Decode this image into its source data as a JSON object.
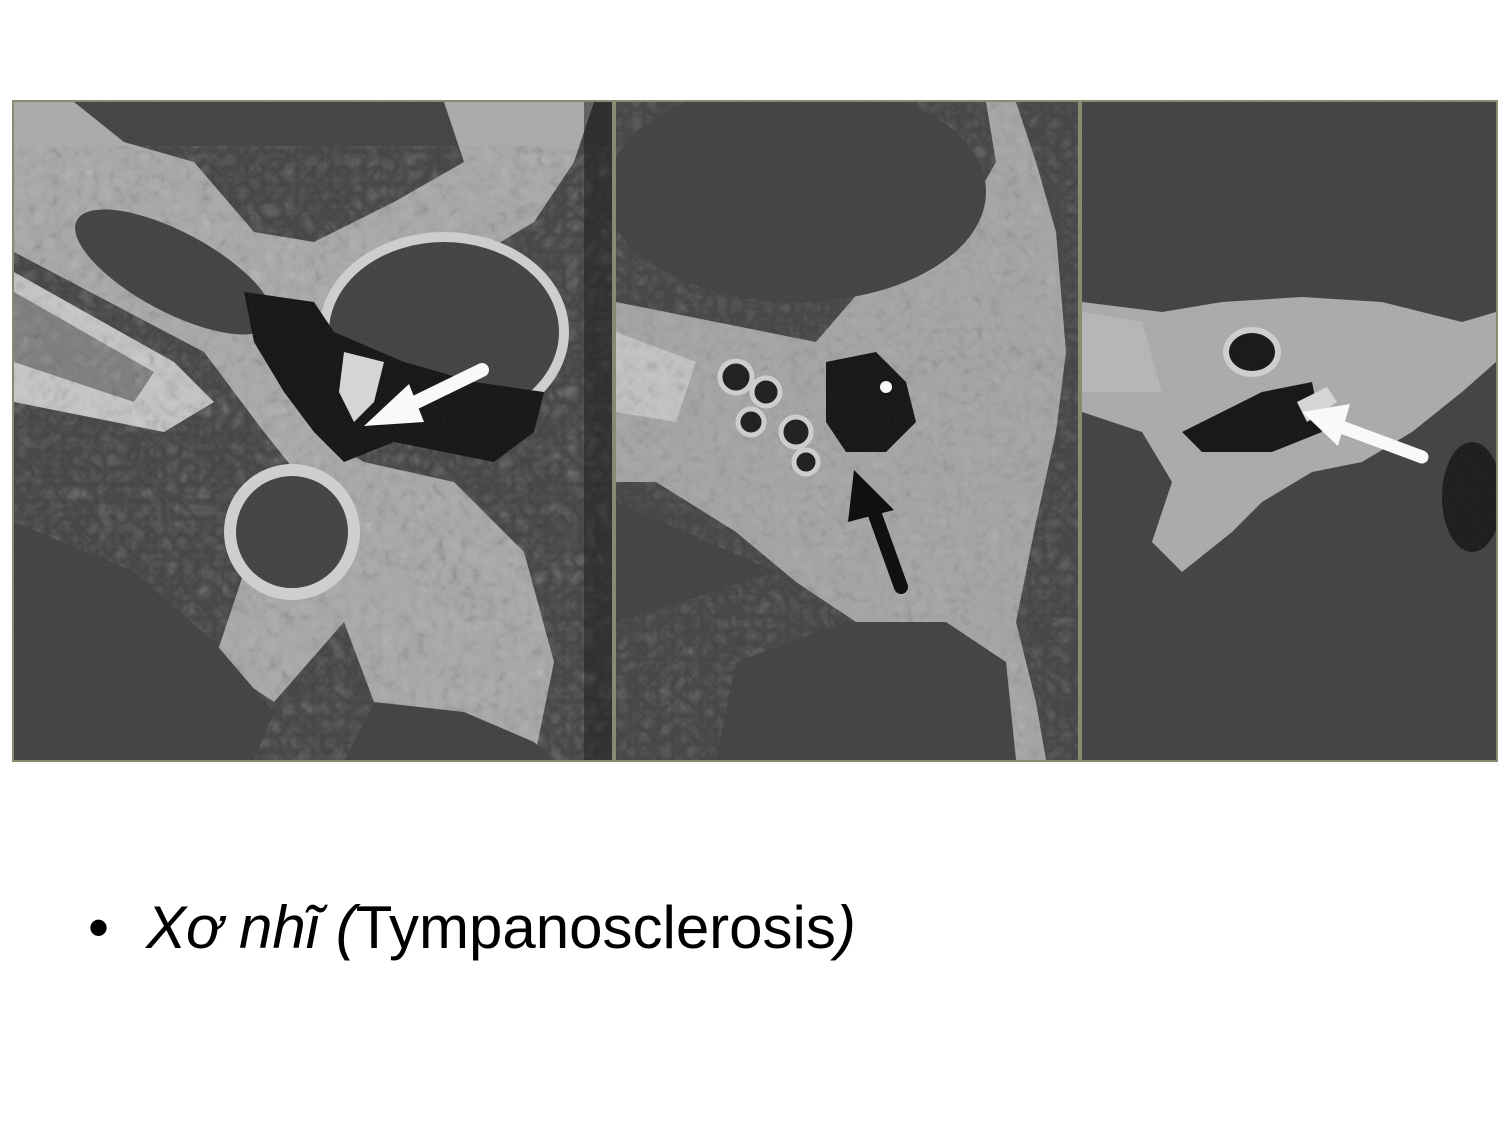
{
  "slide": {
    "figure": {
      "panels": [
        {
          "arrow_color": "#ffffff"
        },
        {
          "arrow_color": "#000000"
        },
        {
          "arrow_color": "#ffffff"
        }
      ]
    },
    "caption": {
      "bullet": "•",
      "italic_prefix": "Xơ nhĩ (",
      "term": "Tympanosclerosis",
      "italic_suffix": ")"
    }
  }
}
